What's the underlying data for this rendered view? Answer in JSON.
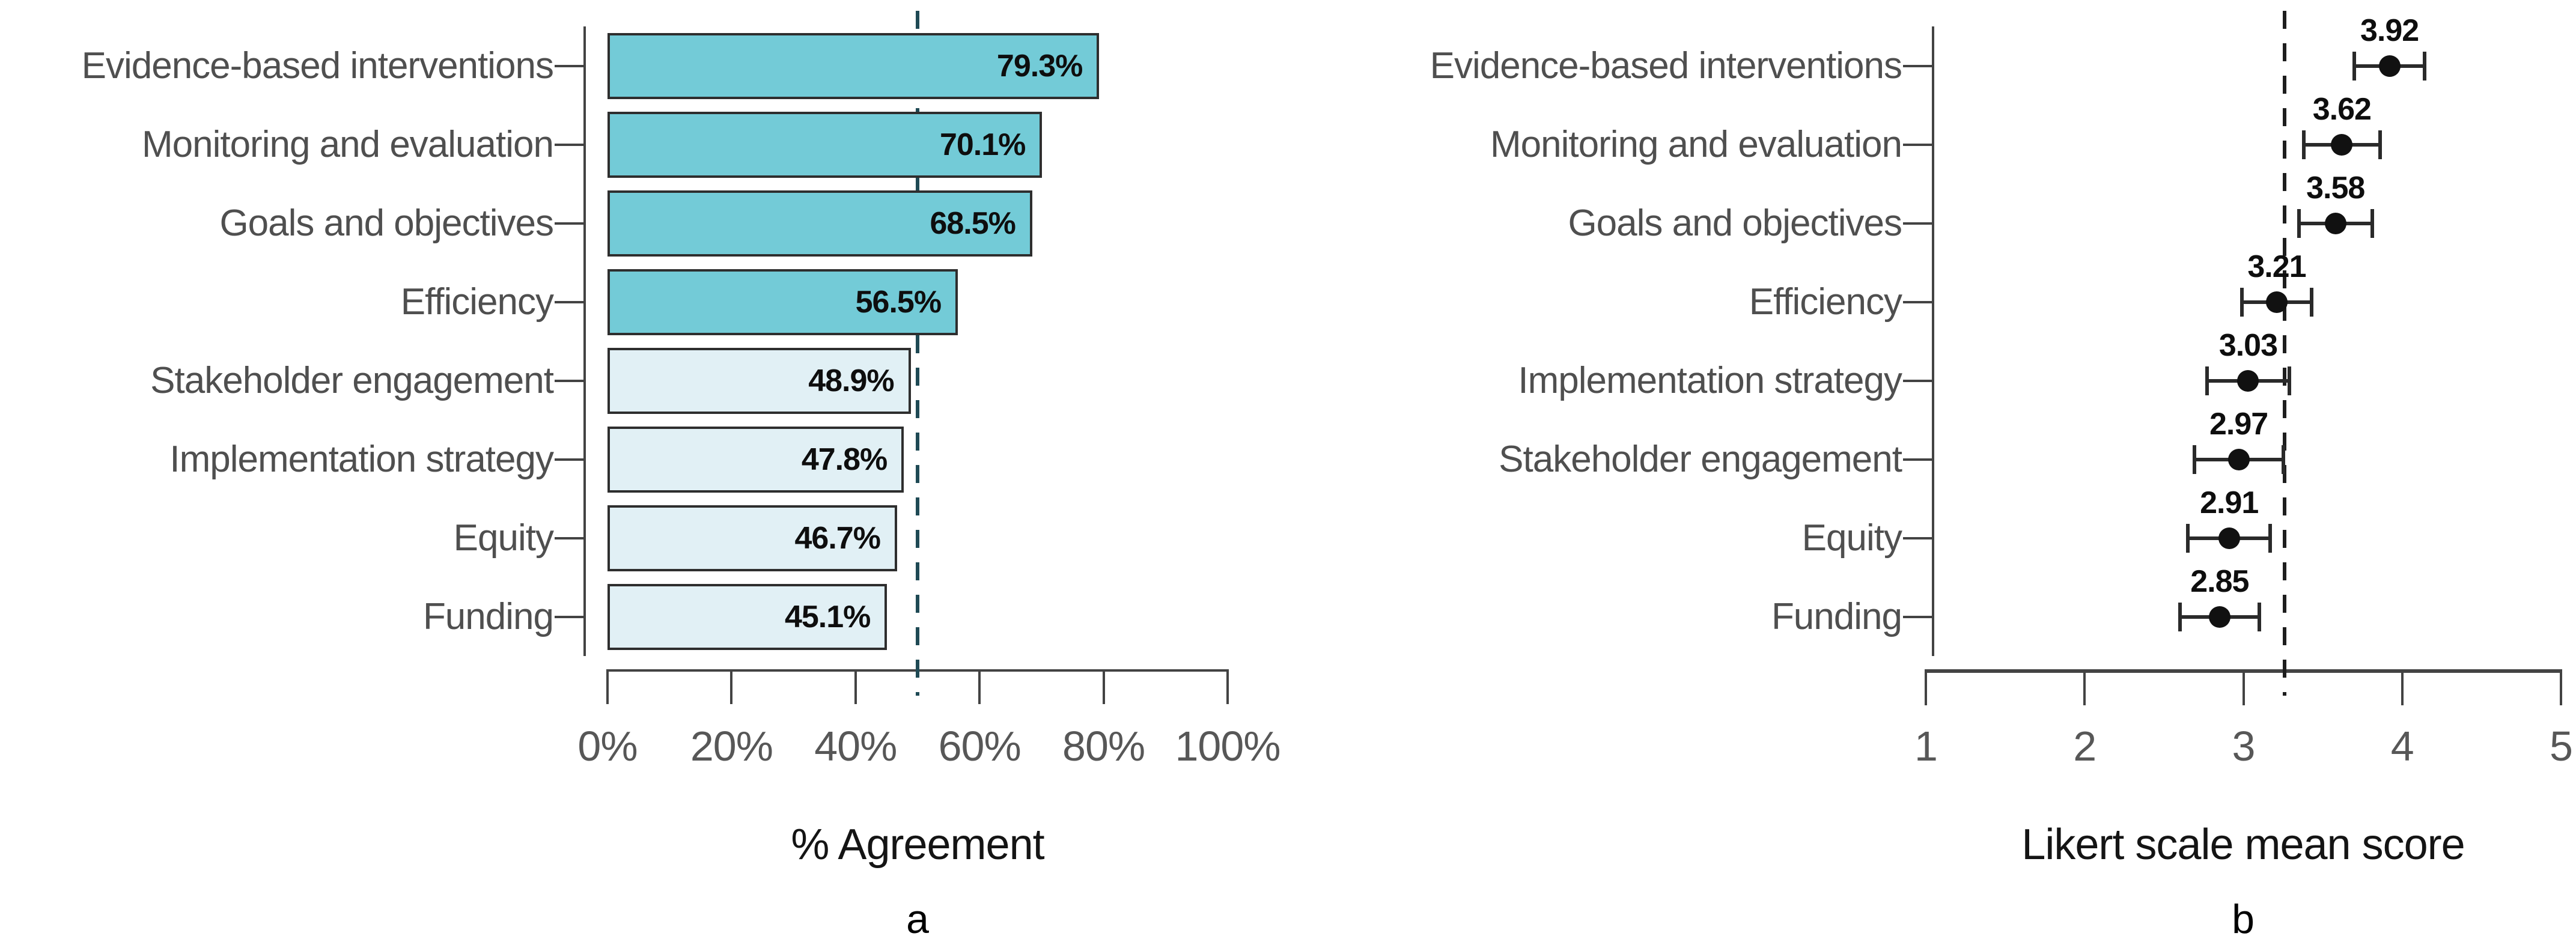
{
  "figure": {
    "description": "Two-panel figure: horizontal bar chart of percent agreement and dot plot with error bars of Likert scale mean scores for eight program components"
  },
  "colors": {
    "bar_teal": "#73CBD7",
    "bar_light": "#E1F0F5",
    "bar_border": "#2E2E2E",
    "reference_line_a": "#1F4A55",
    "reference_line_b": "#1E1E1E",
    "axis": "#434343",
    "tick_label": "#575757",
    "category_label": "#4F4F4F",
    "value_label": "#0E0E0E",
    "dot": "#111111",
    "error_bar": "#2A2A2A"
  },
  "chart_data": [
    {
      "type": "bar",
      "orientation": "horizontal",
      "panel_label": "a",
      "xlabel": "% Agreement",
      "xlim": [
        0,
        100
      ],
      "x_ticks": [
        "0%",
        "20%",
        "40%",
        "60%",
        "80%",
        "100%"
      ],
      "x_tick_values": [
        0,
        20,
        40,
        60,
        80,
        100
      ],
      "reference_line": 50,
      "grid": false,
      "legend": false,
      "categories": [
        "Evidence-based interventions",
        "Monitoring and evaluation",
        "Goals and objectives",
        "Efficiency",
        "Stakeholder engagement",
        "Implementation strategy",
        "Equity",
        "Funding"
      ],
      "values": [
        79.3,
        70.1,
        68.5,
        56.5,
        48.9,
        47.8,
        46.7,
        45.1
      ],
      "value_labels": [
        "79.3%",
        "70.1%",
        "68.5%",
        "56.5%",
        "48.9%",
        "47.8%",
        "46.7%",
        "45.1%"
      ],
      "bar_colors": [
        "#73CBD7",
        "#73CBD7",
        "#73CBD7",
        "#73CBD7",
        "#E1F0F5",
        "#E1F0F5",
        "#E1F0F5",
        "#E1F0F5"
      ]
    },
    {
      "type": "scatter",
      "marker": "point-with-error-bars",
      "panel_label": "b",
      "xlabel": "Likert scale mean score",
      "xlim": [
        1,
        5
      ],
      "x_ticks": [
        "1",
        "2",
        "3",
        "4",
        "5"
      ],
      "x_tick_values": [
        1,
        2,
        3,
        4,
        5
      ],
      "reference_line": 3.26,
      "grid": false,
      "legend": false,
      "categories": [
        "Evidence-based interventions",
        "Monitoring and evaluation",
        "Goals and objectives",
        "Efficiency",
        "Implementation strategy",
        "Stakeholder engagement",
        "Equity",
        "Funding"
      ],
      "values": [
        3.92,
        3.62,
        3.58,
        3.21,
        3.03,
        2.97,
        2.91,
        2.85
      ],
      "errors": [
        0.22,
        0.24,
        0.23,
        0.22,
        0.26,
        0.28,
        0.26,
        0.25
      ],
      "value_labels": [
        "3.92",
        "3.62",
        "3.58",
        "3.21",
        "3.03",
        "2.97",
        "2.91",
        "2.85"
      ]
    }
  ]
}
